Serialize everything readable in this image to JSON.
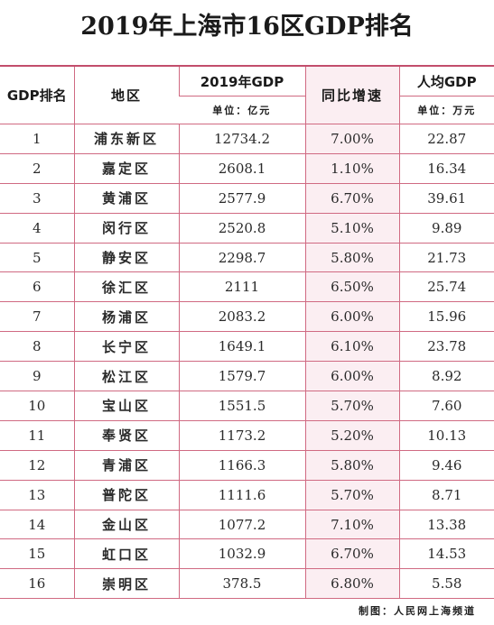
{
  "title": "2019年上海市16区GDP排名",
  "table": {
    "headers": {
      "rank": "GDP排名",
      "district": "地区",
      "gdp": "2019年GDP",
      "gdp_unit": "单位：亿元",
      "growth": "同比增速",
      "per_capita": "人均GDP",
      "per_capita_unit": "单位：万元"
    },
    "rows": [
      {
        "rank": "1",
        "district": "浦东新区",
        "gdp": "12734.2",
        "growth": "7.00%",
        "per_capita": "22.87"
      },
      {
        "rank": "2",
        "district": "嘉定区",
        "gdp": "2608.1",
        "growth": "1.10%",
        "per_capita": "16.34"
      },
      {
        "rank": "3",
        "district": "黄浦区",
        "gdp": "2577.9",
        "growth": "6.70%",
        "per_capita": "39.61"
      },
      {
        "rank": "4",
        "district": "闵行区",
        "gdp": "2520.8",
        "growth": "5.10%",
        "per_capita": "9.89"
      },
      {
        "rank": "5",
        "district": "静安区",
        "gdp": "2298.7",
        "growth": "5.80%",
        "per_capita": "21.73"
      },
      {
        "rank": "6",
        "district": "徐汇区",
        "gdp": "2111",
        "growth": "6.50%",
        "per_capita": "25.74"
      },
      {
        "rank": "7",
        "district": "杨浦区",
        "gdp": "2083.2",
        "growth": "6.00%",
        "per_capita": "15.96"
      },
      {
        "rank": "8",
        "district": "长宁区",
        "gdp": "1649.1",
        "growth": "6.10%",
        "per_capita": "23.78"
      },
      {
        "rank": "9",
        "district": "松江区",
        "gdp": "1579.7",
        "growth": "6.00%",
        "per_capita": "8.92"
      },
      {
        "rank": "10",
        "district": "宝山区",
        "gdp": "1551.5",
        "growth": "5.70%",
        "per_capita": "7.60"
      },
      {
        "rank": "11",
        "district": "奉贤区",
        "gdp": "1173.2",
        "growth": "5.20%",
        "per_capita": "10.13"
      },
      {
        "rank": "12",
        "district": "青浦区",
        "gdp": "1166.3",
        "growth": "5.80%",
        "per_capita": "9.46"
      },
      {
        "rank": "13",
        "district": "普陀区",
        "gdp": "1111.6",
        "growth": "5.70%",
        "per_capita": "8.71"
      },
      {
        "rank": "14",
        "district": "金山区",
        "gdp": "1077.2",
        "growth": "7.10%",
        "per_capita": "13.38"
      },
      {
        "rank": "15",
        "district": "虹口区",
        "gdp": "1032.9",
        "growth": "6.70%",
        "per_capita": "14.53"
      },
      {
        "rank": "16",
        "district": "崇明区",
        "gdp": "378.5",
        "growth": "6.80%",
        "per_capita": "5.58"
      }
    ]
  },
  "footer": "制图：人民网上海频道",
  "colors": {
    "border": "#d06a82",
    "growth_column_tint": "#fbeef2"
  }
}
